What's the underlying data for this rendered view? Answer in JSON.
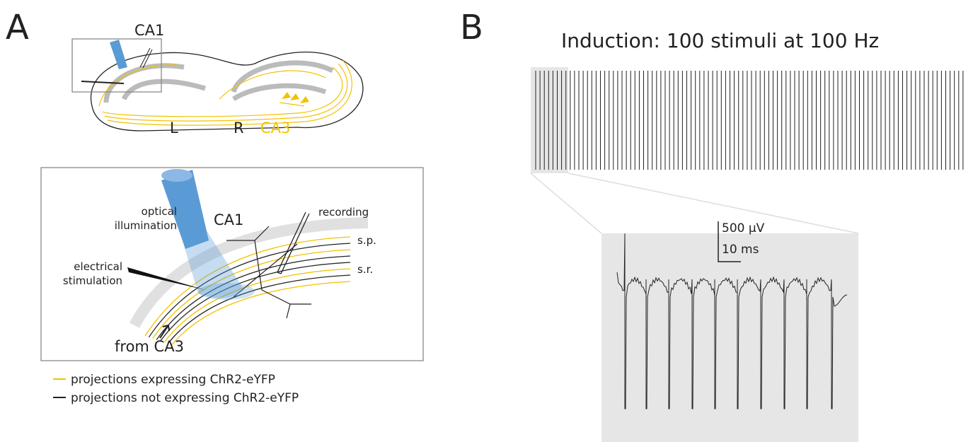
{
  "panel_a": {
    "label": "A",
    "overview": {
      "ca1": "CA1",
      "left": "L",
      "right": "R",
      "ca3": "CA3"
    },
    "inset": {
      "optical": [
        "optical",
        "illumination"
      ],
      "ca1": "CA1",
      "recording": "recording",
      "sp": "s.p.",
      "sr": "s.r.",
      "electrical": [
        "electrical",
        "stimulation"
      ],
      "from": "from CA3"
    },
    "legend": [
      "projections expressing ChR2-eYFP",
      "projections not expressing ChR2-eYFP"
    ]
  },
  "panel_b": {
    "label": "B",
    "title": "Induction: 100 stimuli at 100 Hz",
    "scale_bar": {
      "voltage": "500 µV",
      "time": "10 ms"
    }
  }
}
